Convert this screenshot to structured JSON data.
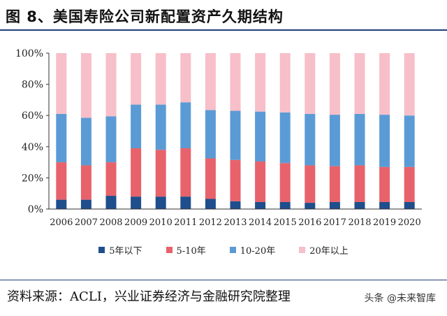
{
  "header": {
    "title": "图 8、美国寿险公司新配置资产久期结构"
  },
  "footer": {
    "source": "资料来源：ACLI，兴业证券经济与金融研究院整理",
    "watermark": "头条 @未来智库"
  },
  "colors": {
    "title_rule": "#1f3e78",
    "s1": "#1f4e8c",
    "s2": "#e8626b",
    "s3": "#5b9bd5",
    "s4": "#f7bfc9"
  },
  "chart_data": {
    "type": "bar",
    "stacked": true,
    "categories": [
      "2006",
      "2007",
      "2008",
      "2009",
      "2010",
      "2011",
      "2012",
      "2013",
      "2014",
      "2015",
      "2016",
      "2017",
      "2018",
      "2019",
      "2020"
    ],
    "ylim": [
      0,
      100
    ],
    "yticks": [
      "0%",
      "20%",
      "40%",
      "60%",
      "80%",
      "100%"
    ],
    "grid": false,
    "legend_position": "bottom",
    "series": [
      {
        "name": "5年以下",
        "color": "#1f4e8c",
        "values": [
          6,
          6,
          8.5,
          8,
          8,
          8,
          6.5,
          5,
          4.5,
          4.5,
          4,
          4.5,
          4.5,
          4.5,
          4.5
        ]
      },
      {
        "name": "5-10年",
        "color": "#e8626b",
        "values": [
          24,
          22,
          21.5,
          31,
          30,
          31,
          26,
          26.5,
          26,
          25,
          24,
          23,
          23.5,
          22.5,
          22.5
        ]
      },
      {
        "name": "10-20年",
        "color": "#5b9bd5",
        "values": [
          31,
          30.5,
          29.5,
          28,
          29,
          29.5,
          31,
          31.5,
          32,
          32.5,
          33,
          33,
          33,
          33.5,
          33
        ]
      },
      {
        "name": "20年以上",
        "color": "#f7bfc9",
        "values": [
          39,
          41.5,
          40.5,
          33,
          33,
          31.5,
          36.5,
          37,
          37.5,
          38,
          39,
          39.5,
          39,
          39.5,
          40
        ]
      }
    ]
  }
}
